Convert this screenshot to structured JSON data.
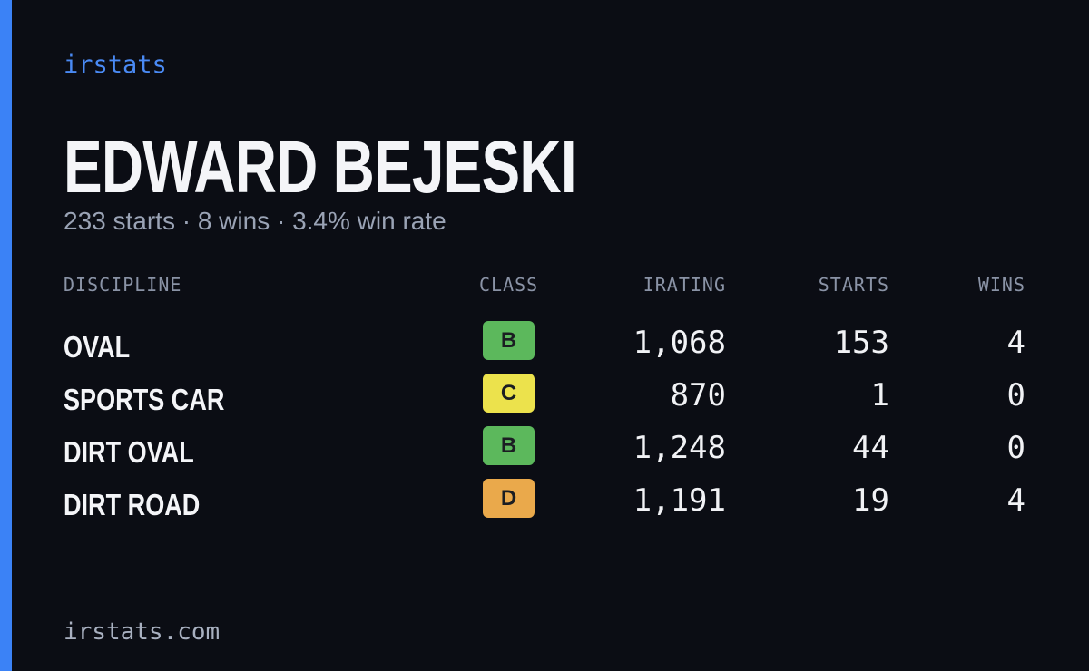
{
  "header": {
    "brand": "irstats",
    "name": "EDWARD BEJESKI",
    "summary": "233 starts · 8 wins · 3.4% win rate"
  },
  "table": {
    "columns": [
      "DISCIPLINE",
      "CLASS",
      "IRATING",
      "STARTS",
      "WINS"
    ],
    "rows": [
      [
        "OVAL",
        "B",
        "1,068",
        "153",
        "4"
      ],
      [
        "SPORTS CAR",
        "C",
        "870",
        "1",
        "0"
      ],
      [
        "DIRT OVAL",
        "B",
        "1,248",
        "44",
        "0"
      ],
      [
        "DIRT ROAD",
        "D",
        "1,191",
        "19",
        "4"
      ]
    ]
  },
  "footer": {
    "url": "irstats.com"
  }
}
